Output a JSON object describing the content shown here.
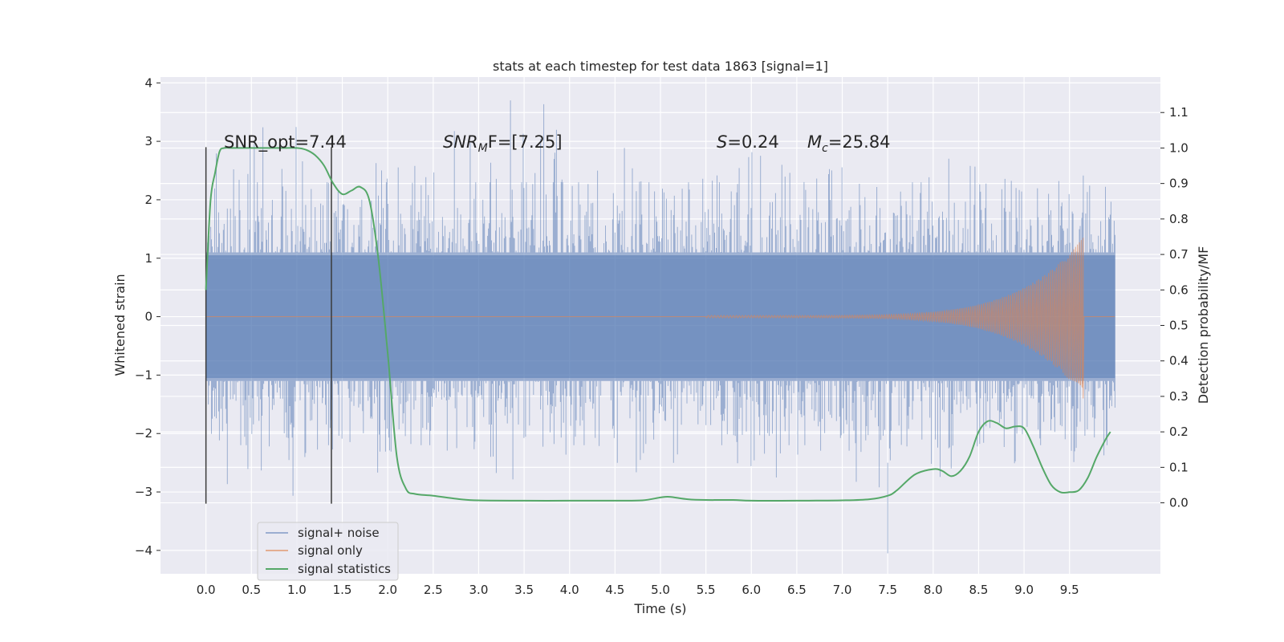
{
  "chart_data": {
    "type": "line",
    "title": "stats at each timestep for test data 1863 [signal=1]",
    "xlabel": "Time (s)",
    "ylabel": "Whitened strain",
    "y2label": "Detection probability/MF",
    "xlim": [
      -0.5,
      10.5
    ],
    "ylim": [
      -4.4,
      4.1
    ],
    "y2lim": [
      -0.2,
      1.2
    ],
    "x_ticks": [
      0.0,
      0.5,
      1.0,
      1.5,
      2.0,
      2.5,
      3.0,
      3.5,
      4.0,
      4.5,
      5.0,
      5.5,
      6.0,
      6.5,
      7.0,
      7.5,
      8.0,
      8.5,
      9.0,
      9.5
    ],
    "x_tick_labels": [
      "0.0",
      "0.5",
      "1.0",
      "1.5",
      "2.0",
      "2.5",
      "3.0",
      "3.5",
      "4.0",
      "4.5",
      "5.0",
      "5.5",
      "6.0",
      "6.5",
      "7.0",
      "7.5",
      "8.0",
      "8.5",
      "9.0",
      "9.5"
    ],
    "y_ticks": [
      -4,
      -3,
      -2,
      -1,
      0,
      1,
      2,
      3,
      4
    ],
    "y_tick_labels": [
      "−4",
      "−3",
      "−2",
      "−1",
      "0",
      "1",
      "2",
      "3",
      "4"
    ],
    "y2_ticks": [
      0.0,
      0.1,
      0.2,
      0.3,
      0.4,
      0.5,
      0.6,
      0.7,
      0.8,
      0.9,
      1.0,
      1.1
    ],
    "y2_tick_labels": [
      "0.0",
      "0.1",
      "0.2",
      "0.3",
      "0.4",
      "0.5",
      "0.6",
      "0.7",
      "0.8",
      "0.9",
      "1.0",
      "1.1"
    ],
    "grid": true,
    "legend_position": "lower-left",
    "annotations": {
      "snr_opt": "SNR_opt=7.44",
      "snr_mf_main": "SNR",
      "snr_mf_sub": "M",
      "snr_mf_tail": "F=[7.25]",
      "s_main": "S",
      "s_tail": "=0.24",
      "mc_main": "M",
      "mc_sub": "c",
      "mc_tail": "=25.84"
    },
    "vertical_markers": [
      {
        "x": 0.0,
        "y_range": [
          -3.2,
          2.9
        ]
      },
      {
        "x": 1.38,
        "y_range": [
          -3.2,
          2.9
        ]
      }
    ],
    "noise_envelope": {
      "x_range": [
        0.0,
        10.0
      ],
      "typical_abs": 1.1,
      "peak_abs": 3.7,
      "min": -4.05,
      "color": "#4c72b0"
    },
    "series": [
      {
        "name": "signal+ noise",
        "axis": "left",
        "color": "#4c72b0",
        "x_range": [
          0.0,
          10.0
        ]
      },
      {
        "name": "signal only",
        "axis": "left",
        "color": "#dd8452",
        "chirp": {
          "t_start": 5.5,
          "t_merge": 9.65,
          "amp_start": 0.02,
          "amp_merge": 1.35,
          "f_start": 15,
          "f_merge": 25
        }
      },
      {
        "name": "signal statistics",
        "axis": "right",
        "color": "#55a868",
        "x": [
          0.0,
          0.05,
          0.1,
          0.15,
          0.2,
          0.3,
          0.5,
          0.8,
          1.0,
          1.1,
          1.2,
          1.3,
          1.4,
          1.5,
          1.6,
          1.7,
          1.8,
          1.9,
          2.0,
          2.1,
          2.2,
          2.3,
          2.5,
          2.8,
          3.0,
          3.5,
          4.0,
          4.5,
          4.8,
          5.0,
          5.1,
          5.3,
          5.5,
          5.8,
          6.0,
          6.5,
          7.0,
          7.3,
          7.5,
          7.6,
          7.8,
          8.0,
          8.1,
          8.2,
          8.3,
          8.4,
          8.5,
          8.6,
          8.7,
          8.8,
          8.9,
          9.0,
          9.1,
          9.2,
          9.3,
          9.4,
          9.5,
          9.6,
          9.7,
          9.8,
          9.9,
          9.95
        ],
        "y": [
          0.6,
          0.85,
          0.93,
          0.99,
          1.0,
          1.0,
          1.0,
          1.0,
          1.0,
          0.995,
          0.98,
          0.95,
          0.9,
          0.87,
          0.88,
          0.89,
          0.85,
          0.68,
          0.42,
          0.13,
          0.04,
          0.025,
          0.02,
          0.01,
          0.007,
          0.006,
          0.006,
          0.006,
          0.007,
          0.015,
          0.017,
          0.01,
          0.008,
          0.008,
          0.006,
          0.006,
          0.007,
          0.01,
          0.02,
          0.035,
          0.08,
          0.095,
          0.09,
          0.075,
          0.09,
          0.13,
          0.2,
          0.23,
          0.225,
          0.21,
          0.215,
          0.21,
          0.16,
          0.1,
          0.05,
          0.03,
          0.03,
          0.035,
          0.07,
          0.13,
          0.18,
          0.2
        ]
      }
    ]
  }
}
